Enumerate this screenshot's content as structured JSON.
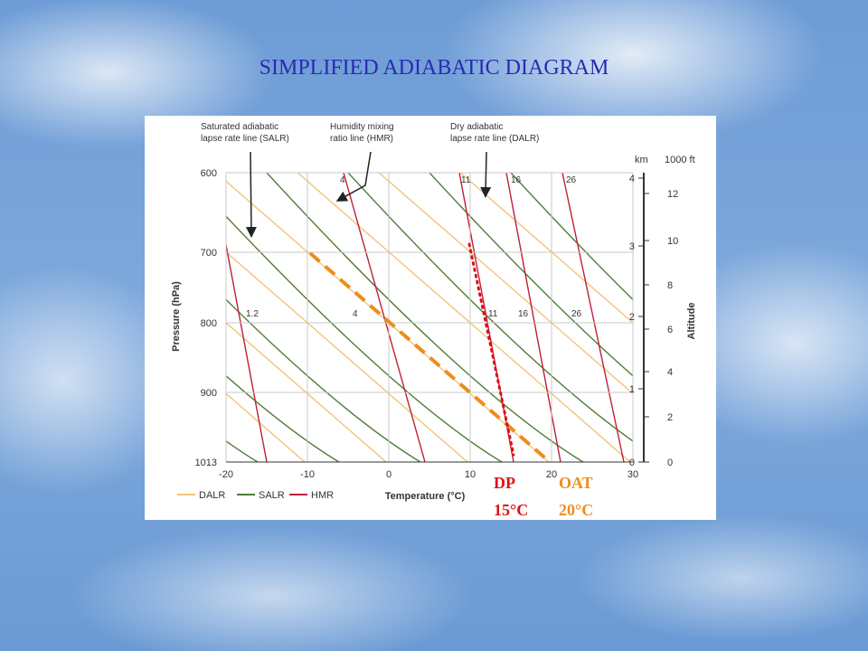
{
  "title": "SIMPLIFIED ADIABATIC  DIAGRAM",
  "diagram": {
    "annotations": [
      {
        "lines": [
          "Saturated adiabatic",
          "lapse rate line (SALR)"
        ]
      },
      {
        "lines": [
          "Humidity mixing",
          "ratio line (HMR)"
        ]
      },
      {
        "lines": [
          "Dry adiabatic",
          "lapse rate line (DALR)"
        ]
      }
    ],
    "pressure_axis": {
      "label": "Pressure (hPa)",
      "ticks": [
        600,
        700,
        800,
        900,
        1013
      ]
    },
    "temperature_axis": {
      "label": "Temperature (°C)",
      "ticks": [
        -20,
        -10,
        0,
        10,
        20,
        30
      ]
    },
    "altitude_axis": {
      "label": "Altitude",
      "km_unit": "km",
      "ft_unit": "1000 ft",
      "km_ticks": [
        4,
        3,
        2,
        1,
        0
      ],
      "ft_ticks": [
        12,
        10,
        8,
        6,
        4,
        2,
        0
      ]
    },
    "hmr_labels_top": [
      4,
      11,
      16,
      26
    ],
    "hmr_labels_mid": [
      1.2,
      4,
      11,
      16,
      26
    ],
    "legend": [
      "DALR",
      "SALR",
      "HMR"
    ]
  },
  "callouts": [
    {
      "label": "DP",
      "value": "15°C"
    },
    {
      "label": "OAT",
      "value": "20°C"
    }
  ]
}
